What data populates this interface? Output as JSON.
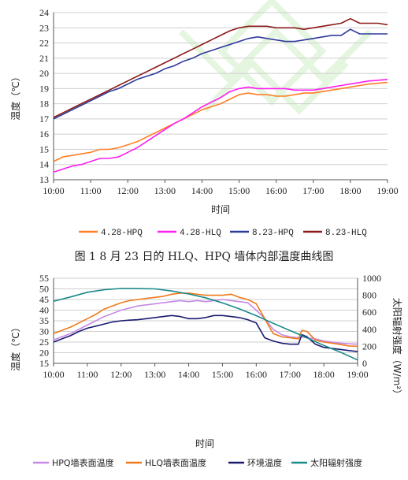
{
  "caption": "图 1   8 月 23 日的 HLQ、HPQ 墙体内部温度曲线图",
  "chart_data": [
    {
      "type": "line",
      "xlabel": "时间",
      "ylabel": "温度（℃）",
      "ylim": [
        13,
        24
      ],
      "yticks": [
        13,
        14,
        15,
        16,
        17,
        18,
        19,
        20,
        21,
        22,
        23,
        24
      ],
      "xticks": [
        "10:00",
        "11:00",
        "12:00",
        "13:00",
        "14:00",
        "15:00",
        "16:00",
        "17:00",
        "18:00",
        "19:00"
      ],
      "grid": "horizontal",
      "legend_position": "bottom",
      "series": [
        {
          "name": "4.28-HPQ",
          "color": "#ff7f27",
          "x": [
            10,
            10.25,
            10.5,
            10.75,
            11,
            11.25,
            11.5,
            11.75,
            12,
            12.25,
            12.5,
            12.75,
            13,
            13.25,
            13.5,
            13.75,
            14,
            14.25,
            14.5,
            14.75,
            15,
            15.25,
            15.5,
            15.75,
            16,
            16.25,
            16.5,
            16.75,
            17,
            17.25,
            17.5,
            17.75,
            18,
            18.25,
            18.5,
            18.75,
            19
          ],
          "y": [
            14.2,
            14.5,
            14.6,
            14.7,
            14.8,
            15.0,
            15.0,
            15.1,
            15.3,
            15.5,
            15.8,
            16.1,
            16.4,
            16.7,
            17.0,
            17.3,
            17.6,
            17.8,
            18.0,
            18.3,
            18.6,
            18.7,
            18.6,
            18.6,
            18.5,
            18.5,
            18.6,
            18.7,
            18.7,
            18.8,
            18.9,
            19.0,
            19.1,
            19.2,
            19.3,
            19.35,
            19.4
          ]
        },
        {
          "name": "4.28-HLQ",
          "color": "#ff1ef0",
          "x": [
            10,
            10.25,
            10.5,
            10.75,
            11,
            11.25,
            11.5,
            11.75,
            12,
            12.25,
            12.5,
            12.75,
            13,
            13.25,
            13.5,
            13.75,
            14,
            14.25,
            14.5,
            14.75,
            15,
            15.25,
            15.5,
            15.75,
            16,
            16.25,
            16.5,
            16.75,
            17,
            17.25,
            17.5,
            17.75,
            18,
            18.25,
            18.5,
            18.75,
            19
          ],
          "y": [
            13.5,
            13.7,
            13.9,
            14.0,
            14.2,
            14.4,
            14.4,
            14.5,
            14.8,
            15.1,
            15.5,
            15.9,
            16.3,
            16.7,
            17.0,
            17.4,
            17.8,
            18.1,
            18.4,
            18.8,
            19.0,
            19.1,
            19.0,
            19.0,
            19.0,
            19.0,
            18.9,
            18.9,
            18.9,
            19.0,
            19.1,
            19.2,
            19.3,
            19.4,
            19.5,
            19.55,
            19.6
          ]
        },
        {
          "name": "8.23-HPQ",
          "color": "#2e3a9c",
          "x": [
            10,
            10.25,
            10.5,
            10.75,
            11,
            11.25,
            11.5,
            11.75,
            12,
            12.25,
            12.5,
            12.75,
            13,
            13.25,
            13.5,
            13.75,
            14,
            14.25,
            14.5,
            14.75,
            15,
            15.25,
            15.5,
            15.75,
            16,
            16.25,
            16.5,
            16.75,
            17,
            17.25,
            17.5,
            17.75,
            18,
            18.25,
            18.5,
            18.75,
            19
          ],
          "y": [
            17.0,
            17.3,
            17.6,
            17.9,
            18.2,
            18.5,
            18.8,
            19.0,
            19.3,
            19.6,
            19.8,
            20.0,
            20.3,
            20.5,
            20.8,
            21.0,
            21.3,
            21.5,
            21.7,
            21.9,
            22.1,
            22.3,
            22.4,
            22.3,
            22.2,
            22.1,
            22.1,
            22.2,
            22.3,
            22.4,
            22.5,
            22.5,
            22.9,
            22.6,
            22.6,
            22.6,
            22.6
          ]
        },
        {
          "name": "8.23-HLQ",
          "color": "#8b1a1a",
          "x": [
            10,
            10.25,
            10.5,
            10.75,
            11,
            11.25,
            11.5,
            11.75,
            12,
            12.25,
            12.5,
            12.75,
            13,
            13.25,
            13.5,
            13.75,
            14,
            14.25,
            14.5,
            14.75,
            15,
            15.25,
            15.5,
            15.75,
            16,
            16.25,
            16.5,
            16.75,
            17,
            17.25,
            17.5,
            17.75,
            18,
            18.25,
            18.5,
            18.75,
            19
          ],
          "y": [
            17.1,
            17.4,
            17.7,
            18.0,
            18.3,
            18.6,
            18.9,
            19.2,
            19.5,
            19.8,
            20.1,
            20.4,
            20.7,
            21.0,
            21.3,
            21.6,
            21.9,
            22.2,
            22.5,
            22.8,
            23.0,
            23.1,
            23.1,
            23.1,
            23.0,
            23.0,
            23.0,
            22.9,
            23.0,
            23.1,
            23.2,
            23.3,
            23.6,
            23.3,
            23.3,
            23.3,
            23.2
          ]
        }
      ]
    },
    {
      "type": "line",
      "xlabel": "时间",
      "ylabel": "温度（℃）",
      "ylabel_right": "太阳辐射强度（W/m²）",
      "ylim": [
        15,
        55
      ],
      "yticks": [
        15,
        20,
        25,
        30,
        35,
        40,
        45,
        50,
        55
      ],
      "ylim_right": [
        0,
        1000
      ],
      "yticks_right": [
        0,
        200,
        400,
        600,
        800,
        1000
      ],
      "xticks": [
        "10:00",
        "11:00",
        "12:00",
        "13:00",
        "14:00",
        "15:00",
        "16:00",
        "17:00",
        "18:00",
        "19:00"
      ],
      "grid": "horizontal",
      "legend_position": "bottom",
      "series": [
        {
          "name": "HPQ墙表面温度",
          "color": "#c58ae6",
          "axis": "left",
          "x": [
            10,
            10.25,
            10.5,
            10.75,
            11,
            11.25,
            11.5,
            11.75,
            12,
            12.25,
            12.5,
            12.75,
            13,
            13.25,
            13.5,
            13.75,
            14,
            14.25,
            14.5,
            14.75,
            15,
            15.25,
            15.5,
            15.75,
            16,
            16.25,
            16.5,
            16.75,
            17,
            17.25,
            17.35,
            17.5,
            17.75,
            18,
            18.25,
            18.5,
            18.75,
            19
          ],
          "y": [
            26,
            27.5,
            29,
            31,
            33,
            35,
            37,
            38.5,
            40,
            41,
            42,
            42.5,
            43,
            43.5,
            44,
            44.5,
            44,
            44.5,
            44,
            44.5,
            45,
            44.5,
            44,
            43.5,
            40,
            36,
            31,
            28.5,
            27.5,
            27,
            27.5,
            27,
            26.5,
            25.5,
            25,
            24.5,
            24.2,
            24
          ]
        },
        {
          "name": "HLQ墙表面温度",
          "color": "#f07a1a",
          "axis": "left",
          "x": [
            10,
            10.25,
            10.5,
            10.75,
            11,
            11.25,
            11.5,
            11.75,
            12,
            12.25,
            12.5,
            12.75,
            13,
            13.25,
            13.5,
            13.75,
            14,
            14.25,
            14.5,
            14.75,
            15,
            15.25,
            15.5,
            15.75,
            16,
            16.25,
            16.5,
            16.75,
            17,
            17.25,
            17.35,
            17.5,
            17.75,
            18,
            18.25,
            18.5,
            18.75,
            19
          ],
          "y": [
            29,
            30.5,
            32,
            34,
            36,
            38,
            40.5,
            42,
            43.5,
            44.5,
            45,
            45.5,
            46,
            46.5,
            47.5,
            48,
            48,
            47.5,
            47,
            47,
            47,
            47.5,
            46,
            45,
            43,
            36,
            29,
            27.5,
            27,
            26.5,
            30.5,
            30,
            26,
            25,
            24.5,
            23.8,
            23.2,
            23
          ]
        },
        {
          "name": "环境温度",
          "color": "#1a1a70",
          "axis": "left",
          "x": [
            10,
            10.25,
            10.5,
            10.75,
            11,
            11.25,
            11.5,
            11.75,
            12,
            12.25,
            12.5,
            12.75,
            13,
            13.25,
            13.5,
            13.75,
            14,
            14.25,
            14.5,
            14.75,
            15,
            15.25,
            15.5,
            15.75,
            16,
            16.25,
            16.5,
            16.75,
            17,
            17.25,
            17.35,
            17.5,
            17.75,
            18,
            18.25,
            18.5,
            18.75,
            19
          ],
          "y": [
            25,
            26.5,
            28,
            30,
            31.5,
            32.5,
            33.5,
            34.5,
            35,
            35.3,
            35.5,
            36,
            36.5,
            37,
            37.5,
            37,
            36,
            36,
            36.5,
            37.5,
            37.5,
            37,
            36.5,
            35.5,
            34,
            27,
            25.5,
            24.5,
            24,
            24,
            28.5,
            27.5,
            24,
            22.5,
            22,
            21.5,
            21,
            20.5
          ]
        },
        {
          "name": "太阳辐射强度",
          "color": "#1a8a8a",
          "axis": "right",
          "x": [
            10,
            10.5,
            11,
            11.5,
            12,
            12.5,
            13,
            13.5,
            14,
            14.5,
            15,
            15.5,
            16,
            16.5,
            17,
            17.5,
            18,
            18.5,
            19
          ],
          "y": [
            730,
            780,
            835,
            865,
            880,
            878,
            875,
            850,
            815,
            770,
            710,
            640,
            560,
            470,
            385,
            300,
            210,
            130,
            40
          ]
        }
      ]
    }
  ]
}
